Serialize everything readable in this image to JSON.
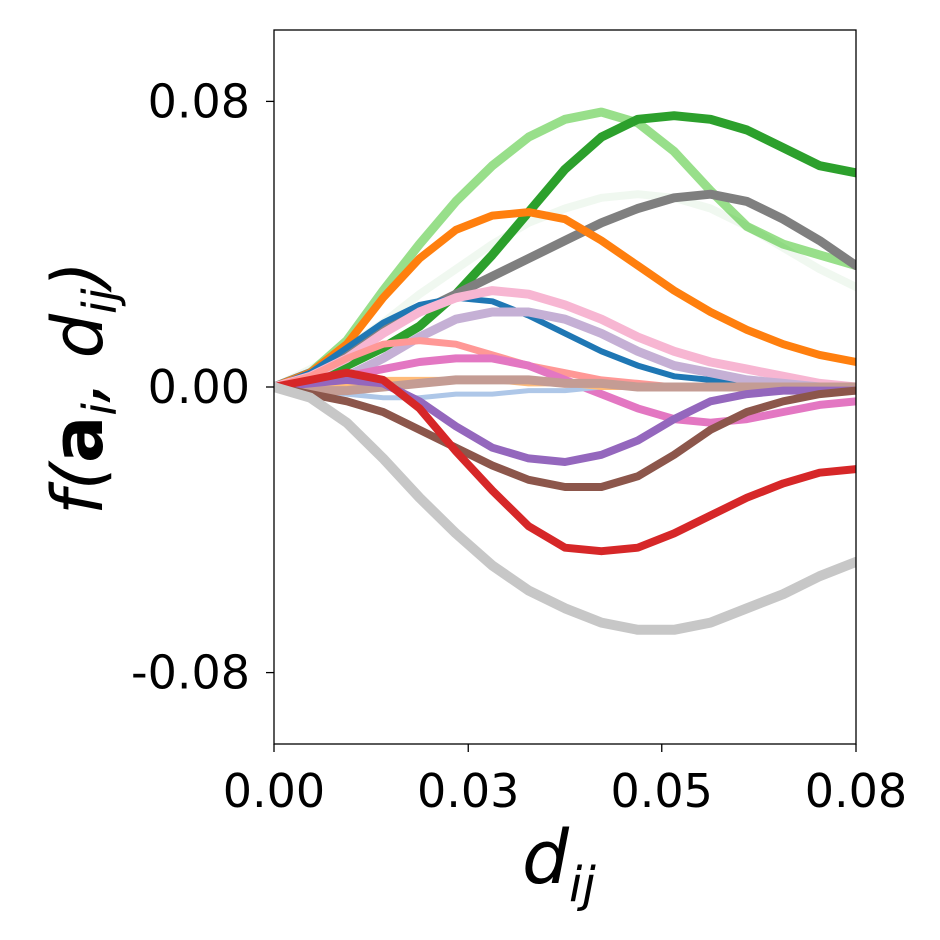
{
  "chart_data": {
    "type": "line",
    "title": "",
    "xlabel": "d_ij",
    "ylabel": "f(a_i, d_ij)",
    "xlim": [
      0,
      0.08
    ],
    "ylim": [
      -0.1,
      0.1
    ],
    "xticks": [
      {
        "value": 0.0,
        "label": "0.00"
      },
      {
        "value": 0.0267,
        "label": "0.03"
      },
      {
        "value": 0.0533,
        "label": "0.05"
      },
      {
        "value": 0.08,
        "label": "0.08"
      }
    ],
    "yticks": [
      {
        "value": 0.08,
        "label": "0.08"
      },
      {
        "value": 0.0,
        "label": "0.00"
      },
      {
        "value": -0.08,
        "label": "-0.08"
      }
    ],
    "grid": false,
    "legend": "none",
    "x": [
      0,
      0.005,
      0.01,
      0.015,
      0.02,
      0.025,
      0.03,
      0.035,
      0.04,
      0.045,
      0.05,
      0.055,
      0.06,
      0.065,
      0.07,
      0.075,
      0.08
    ],
    "series": [
      {
        "name": "s-lightgreen",
        "color": "#98df8a",
        "width": 9,
        "opacity": 1,
        "values": [
          0,
          0.004,
          0.013,
          0.027,
          0.04,
          0.052,
          0.062,
          0.07,
          0.075,
          0.077,
          0.074,
          0.066,
          0.055,
          0.045,
          0.04,
          0.037,
          0.034
        ]
      },
      {
        "name": "s-green",
        "color": "#2ca02c",
        "width": 9,
        "opacity": 1,
        "values": [
          0,
          0.002,
          0.006,
          0.011,
          0.017,
          0.026,
          0.037,
          0.049,
          0.061,
          0.07,
          0.075,
          0.076,
          0.075,
          0.072,
          0.067,
          0.062,
          0.06
        ]
      },
      {
        "name": "s-faint-green",
        "color": "#2ca02c",
        "width": 8,
        "opacity": 0.07,
        "values": [
          0,
          0.005,
          0.011,
          0.018,
          0.026,
          0.033,
          0.04,
          0.046,
          0.05,
          0.053,
          0.054,
          0.053,
          0.05,
          0.045,
          0.039,
          0.033,
          0.028
        ]
      },
      {
        "name": "s-gray",
        "color": "#7f7f7f",
        "width": 9,
        "opacity": 1,
        "values": [
          0,
          0.004,
          0.01,
          0.016,
          0.021,
          0.026,
          0.031,
          0.036,
          0.041,
          0.046,
          0.05,
          0.053,
          0.054,
          0.052,
          0.047,
          0.041,
          0.034
        ]
      },
      {
        "name": "s-orange",
        "color": "#ff7f0e",
        "width": 8,
        "opacity": 1,
        "values": [
          0,
          0.004,
          0.012,
          0.025,
          0.036,
          0.044,
          0.048,
          0.049,
          0.047,
          0.041,
          0.034,
          0.027,
          0.021,
          0.016,
          0.012,
          0.009,
          0.007
        ]
      },
      {
        "name": "s-blue",
        "color": "#1f77b4",
        "width": 6,
        "opacity": 1,
        "values": [
          0,
          0.004,
          0.011,
          0.018,
          0.023,
          0.025,
          0.024,
          0.02,
          0.015,
          0.01,
          0.006,
          0.003,
          0.002,
          0.001,
          0.0005,
          0.0002,
          0
        ]
      },
      {
        "name": "s-pink",
        "color": "#f7b6d2",
        "width": 9,
        "opacity": 1,
        "values": [
          0,
          0.003,
          0.008,
          0.015,
          0.021,
          0.025,
          0.027,
          0.026,
          0.023,
          0.019,
          0.014,
          0.01,
          0.007,
          0.005,
          0.003,
          0.001,
          0
        ]
      },
      {
        "name": "s-lavender",
        "color": "#c5b0d5",
        "width": 9,
        "opacity": 1,
        "values": [
          0,
          0.001,
          0.003,
          0.008,
          0.014,
          0.019,
          0.021,
          0.021,
          0.019,
          0.015,
          0.01,
          0.006,
          0.004,
          0.002,
          0.001,
          0,
          0
        ]
      },
      {
        "name": "s-salmon",
        "color": "#ff9896",
        "width": 7,
        "opacity": 1,
        "values": [
          0,
          0.003,
          0.008,
          0.012,
          0.013,
          0.012,
          0.009,
          0.006,
          0.004,
          0.002,
          0.001,
          0,
          0,
          0,
          0,
          0,
          0
        ]
      },
      {
        "name": "s-magenta",
        "color": "#e377c2",
        "width": 8,
        "opacity": 1,
        "values": [
          0,
          0.001,
          0.003,
          0.005,
          0.007,
          0.008,
          0.008,
          0.006,
          0.002,
          -0.002,
          -0.006,
          -0.009,
          -0.01,
          -0.009,
          -0.007,
          -0.005,
          -0.004
        ]
      },
      {
        "name": "s-lightblue",
        "color": "#aec7e8",
        "width": 5,
        "opacity": 1,
        "values": [
          0,
          -0.001,
          -0.002,
          -0.003,
          -0.003,
          -0.002,
          -0.002,
          -0.001,
          -0.001,
          0,
          0,
          0,
          0,
          0,
          0,
          0,
          0
        ]
      },
      {
        "name": "s-peach",
        "color": "#ffbb78",
        "width": 6,
        "opacity": 1,
        "values": [
          0,
          0,
          0.001,
          0.002,
          0.002,
          0.002,
          0.002,
          0.001,
          0.001,
          0,
          0,
          0,
          0,
          0,
          0,
          0,
          0
        ]
      },
      {
        "name": "s-tan",
        "color": "#c49c94",
        "width": 9,
        "opacity": 1,
        "values": [
          0,
          -0.001,
          -0.001,
          0,
          0.001,
          0.002,
          0.002,
          0.002,
          0.001,
          0.001,
          0,
          0,
          0,
          0,
          0,
          0,
          0
        ]
      },
      {
        "name": "s-purple",
        "color": "#9467bd",
        "width": 8,
        "opacity": 1,
        "values": [
          0,
          0.001,
          0.002,
          0.001,
          -0.004,
          -0.011,
          -0.017,
          -0.02,
          -0.021,
          -0.019,
          -0.015,
          -0.009,
          -0.004,
          -0.002,
          -0.001,
          -0.001,
          -0.001
        ]
      },
      {
        "name": "s-brown",
        "color": "#8c564b",
        "width": 8,
        "opacity": 1,
        "values": [
          0,
          -0.002,
          -0.004,
          -0.007,
          -0.012,
          -0.017,
          -0.022,
          -0.026,
          -0.028,
          -0.028,
          -0.025,
          -0.019,
          -0.012,
          -0.007,
          -0.004,
          -0.002,
          -0.001
        ]
      },
      {
        "name": "s-red",
        "color": "#d62728",
        "width": 8,
        "opacity": 1,
        "values": [
          0,
          0.002,
          0.004,
          0.002,
          -0.006,
          -0.018,
          -0.029,
          -0.039,
          -0.045,
          -0.046,
          -0.045,
          -0.041,
          -0.036,
          -0.031,
          -0.027,
          -0.024,
          -0.023
        ]
      },
      {
        "name": "s-lightgray",
        "color": "#c7c7c7",
        "width": 10,
        "opacity": 1,
        "values": [
          0,
          -0.003,
          -0.01,
          -0.02,
          -0.031,
          -0.041,
          -0.05,
          -0.057,
          -0.062,
          -0.066,
          -0.068,
          -0.068,
          -0.066,
          -0.062,
          -0.058,
          -0.053,
          -0.049
        ]
      }
    ]
  }
}
